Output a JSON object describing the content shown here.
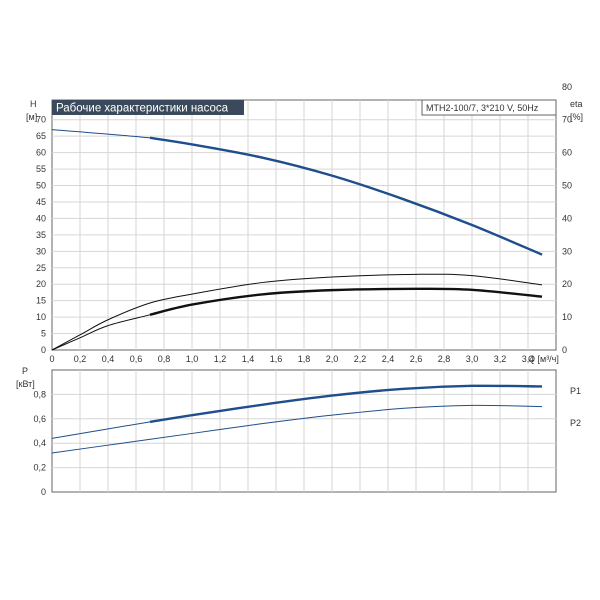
{
  "chart_data": [
    {
      "type": "line",
      "title": "Рабочие характеристики насоса",
      "model": "MTH2-100/7, 3*210 V, 50Hz",
      "y_label_left": "H",
      "y_unit_left": "[м]",
      "y_label_right": "eta",
      "y_unit_right": "[%]",
      "x_label": "Q [м³/ч]",
      "xlim": [
        0,
        3.6
      ],
      "ylim": [
        0,
        76
      ],
      "ylim_right": [
        0,
        76
      ],
      "x_ticks": [
        "0",
        "0,2",
        "0,4",
        "0,6",
        "0,8",
        "1,0",
        "1,2",
        "1,4",
        "1,6",
        "1,8",
        "2,0",
        "2,2",
        "2,4",
        "2,6",
        "2,8",
        "3,0",
        "3,2",
        "3,4"
      ],
      "y_ticks_left": [
        "0",
        "5",
        "10",
        "15",
        "20",
        "25",
        "30",
        "35",
        "40",
        "45",
        "50",
        "55",
        "60",
        "65",
        "70"
      ],
      "y_ticks_right": [
        "0",
        "10",
        "20",
        "30",
        "40",
        "50",
        "60",
        "70",
        "80"
      ],
      "grid": true,
      "series": [
        {
          "name": "H",
          "axis": "left",
          "color": "#1f4e8c",
          "x": [
            0,
            0.7,
            1.0,
            1.5,
            2.0,
            2.5,
            3.0,
            3.5
          ],
          "y": [
            67,
            64.5,
            62.5,
            58.5,
            53,
            46,
            38,
            29
          ],
          "emphasized_from": 0.7
        },
        {
          "name": "eta",
          "axis": "right",
          "color": "#111111",
          "x": [
            0,
            0.2,
            0.4,
            0.7,
            1.0,
            1.5,
            2.0,
            2.6,
            3.0,
            3.5
          ],
          "y": [
            0,
            4.6,
            9.2,
            14.3,
            17,
            20.5,
            22.2,
            23,
            22.6,
            19.8
          ]
        },
        {
          "name": "eta",
          "axis": "right",
          "color": "#111111",
          "x": [
            0,
            0.2,
            0.4,
            0.7,
            1.0,
            1.5,
            2.0,
            2.6,
            3.0,
            3.5
          ],
          "y": [
            0,
            3.7,
            7.4,
            10.7,
            13.8,
            16.9,
            18.2,
            18.6,
            18.3,
            16.2
          ],
          "emphasized_from": 0.7
        }
      ]
    },
    {
      "type": "line",
      "y_label": "P",
      "y_unit": "[кВт]",
      "xlim": [
        0,
        3.6
      ],
      "ylim": [
        0,
        1.0
      ],
      "y_ticks": [
        "0",
        "0,2",
        "0,4",
        "0,6",
        "0,8"
      ],
      "grid": true,
      "series": [
        {
          "name": "P1",
          "color": "#1f4e8c",
          "x": [
            0,
            0.7,
            1.0,
            1.5,
            2.0,
            2.5,
            3.0,
            3.5
          ],
          "y": [
            0.44,
            0.575,
            0.63,
            0.715,
            0.79,
            0.845,
            0.87,
            0.865
          ],
          "emphasized_from": 0.7
        },
        {
          "name": "P2",
          "color": "#1f4e8c",
          "x": [
            0,
            0.5,
            1.0,
            1.5,
            2.0,
            2.5,
            3.0,
            3.5
          ],
          "y": [
            0.32,
            0.4,
            0.48,
            0.56,
            0.63,
            0.685,
            0.71,
            0.7
          ]
        }
      ]
    }
  ]
}
